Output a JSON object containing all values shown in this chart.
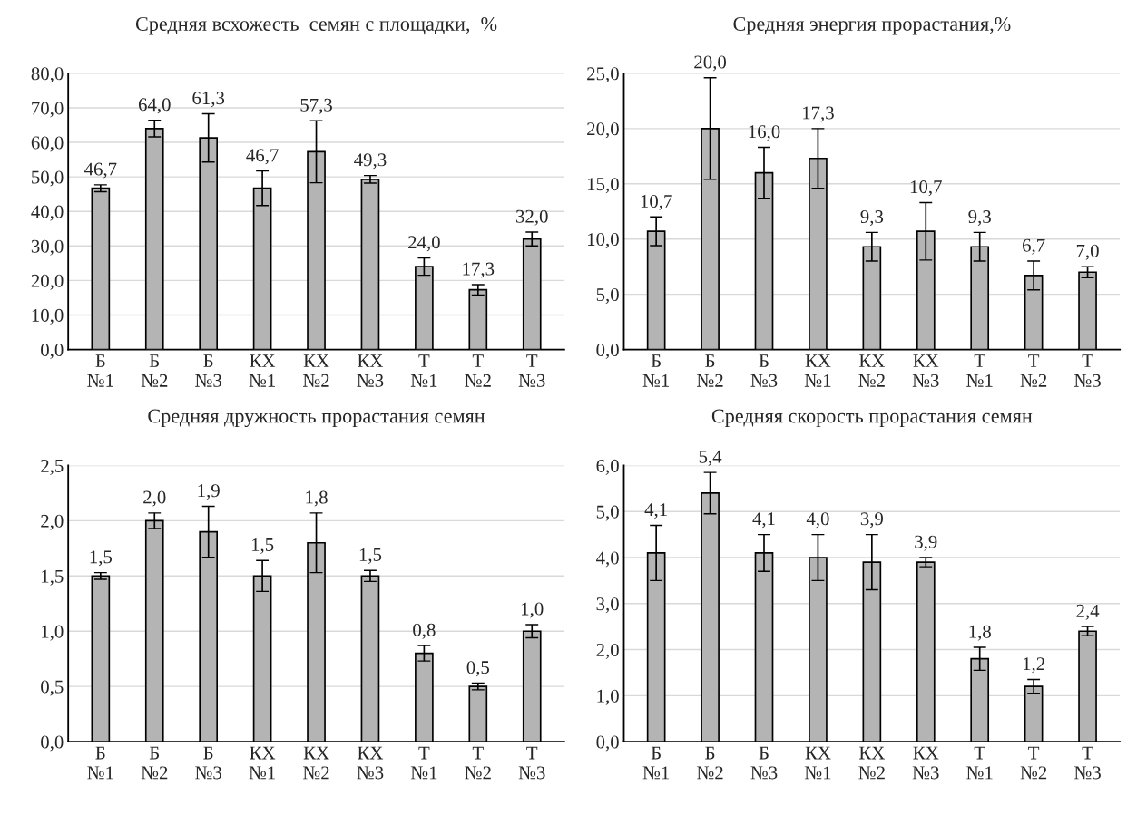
{
  "chart_data": [
    {
      "type": "bar",
      "title": "Средняя всхожесть  семян с площадки,  %",
      "categories": [
        "Б\n№1",
        "Б\n№2",
        "Б\n№3",
        "КХ\n№1",
        "КХ\n№2",
        "КХ\n№3",
        "Т\n№1",
        "Т\n№2",
        "Т\n№3"
      ],
      "color": "#b4b4b4",
      "values": [
        46.7,
        64.0,
        61.3,
        46.7,
        57.3,
        49.3,
        24.0,
        17.3,
        32.0
      ],
      "value_labels": [
        "46,7",
        "64,0",
        "61,3",
        "46,7",
        "57,3",
        "49,3",
        "24,0",
        "17,3",
        "32,0"
      ],
      "errors": [
        1.0,
        2.4,
        7,
        5,
        9,
        1.1,
        2.5,
        1.5,
        2
      ],
      "ylim": [
        0,
        80
      ],
      "yticks": [
        {
          "value": 0,
          "label": "0,0"
        },
        {
          "value": 10,
          "label": "10,0"
        },
        {
          "value": 20,
          "label": "20,0"
        },
        {
          "value": 30,
          "label": "30,0"
        },
        {
          "value": 40,
          "label": "40,0"
        },
        {
          "value": 50,
          "label": "50,0"
        },
        {
          "value": 60,
          "label": "60,0"
        },
        {
          "value": 70,
          "label": "70,0"
        },
        {
          "value": 80,
          "label": "80,0"
        }
      ],
      "grid": "y"
    },
    {
      "type": "bar",
      "title": "Средняя энергия прорастания,%",
      "categories": [
        "Б\n№1",
        "Б\n№2",
        "Б\n№3",
        "КХ\n№1",
        "КХ\n№2",
        "КХ\n№3",
        "Т\n№1",
        "Т\n№2",
        "Т\n№3"
      ],
      "color": "#b4b4b4",
      "values": [
        10.7,
        20.0,
        16.0,
        17.3,
        9.3,
        10.7,
        9.3,
        6.7,
        7.0
      ],
      "value_labels": [
        "10,7",
        "20,0",
        "16,0",
        "17,3",
        "9,3",
        "10,7",
        "9,3",
        "6,7",
        "7,0"
      ],
      "errors": [
        1.3,
        4.6,
        2.3,
        2.7,
        1.3,
        2.6,
        1.3,
        1.3,
        0.5
      ],
      "ylim": [
        0,
        25
      ],
      "yticks": [
        {
          "value": 0,
          "label": "0,0"
        },
        {
          "value": 5,
          "label": "5,0"
        },
        {
          "value": 10,
          "label": "10,0"
        },
        {
          "value": 15,
          "label": "15,0"
        },
        {
          "value": 20,
          "label": "20,0"
        },
        {
          "value": 25,
          "label": "25,0"
        }
      ],
      "grid": "y"
    },
    {
      "type": "bar",
      "title": "Средняя дружность прорастания семян",
      "categories": [
        "Б\n№1",
        "Б\n№2",
        "Б\n№3",
        "КХ\n№1",
        "КХ\n№2",
        "КХ\n№3",
        "Т\n№1",
        "Т\n№2",
        "Т\n№3"
      ],
      "color": "#b4b4b4",
      "values": [
        1.5,
        2.0,
        1.9,
        1.5,
        1.8,
        1.5,
        0.8,
        0.5,
        1.0
      ],
      "value_labels": [
        "1,5",
        "2,0",
        "1,9",
        "1,5",
        "1,8",
        "1,5",
        "0,8",
        "0,5",
        "1,0"
      ],
      "errors": [
        0.03,
        0.07,
        0.23,
        0.14,
        0.27,
        0.05,
        0.07,
        0.03,
        0.06
      ],
      "ylim": [
        0,
        2.5
      ],
      "yticks": [
        {
          "value": 0,
          "label": "0,0"
        },
        {
          "value": 0.5,
          "label": "0,5"
        },
        {
          "value": 1.0,
          "label": "1,0"
        },
        {
          "value": 1.5,
          "label": "1,5"
        },
        {
          "value": 2.0,
          "label": "2,0"
        },
        {
          "value": 2.5,
          "label": "2,5"
        }
      ],
      "grid": "y"
    },
    {
      "type": "bar",
      "title": "Средняя скорость прорастания семян",
      "categories": [
        "Б\n№1",
        "Б\n№2",
        "Б\n№3",
        "КХ\n№1",
        "КХ\n№2",
        "КХ\n№3",
        "Т\n№1",
        "Т\n№2",
        "Т\n№3"
      ],
      "color": "#b4b4b4",
      "values": [
        4.1,
        5.4,
        4.1,
        4.0,
        3.9,
        3.9,
        1.8,
        1.2,
        2.4
      ],
      "value_labels": [
        "4,1",
        "5,4",
        "4,1",
        "4,0",
        "3,9",
        "3,9",
        "1,8",
        "1,2",
        "2,4"
      ],
      "errors": [
        0.6,
        0.45,
        0.4,
        0.5,
        0.6,
        0.1,
        0.25,
        0.15,
        0.1
      ],
      "ylim": [
        0,
        6
      ],
      "yticks": [
        {
          "value": 0,
          "label": "0,0"
        },
        {
          "value": 1,
          "label": "1,0"
        },
        {
          "value": 2,
          "label": "2,0"
        },
        {
          "value": 3,
          "label": "3,0"
        },
        {
          "value": 4,
          "label": "4,0"
        },
        {
          "value": 5,
          "label": "5,0"
        },
        {
          "value": 6,
          "label": "6,0"
        }
      ],
      "grid": "y"
    }
  ]
}
